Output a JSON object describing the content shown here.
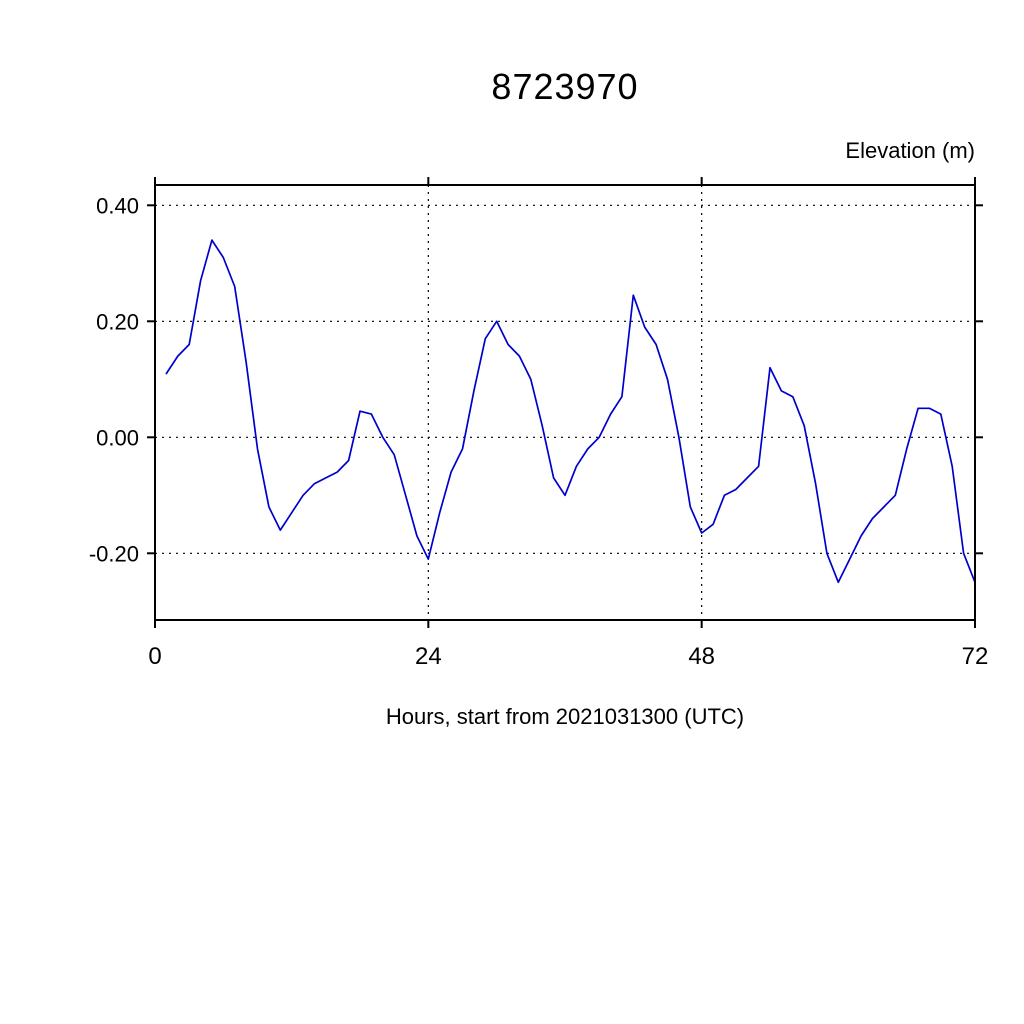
{
  "page": {
    "background": "#ffffff"
  },
  "chart_data": {
    "type": "line",
    "title": "8723970",
    "ylabel": "Elevation (m)",
    "xlabel": "Hours, start from 2021031300 (UTC)",
    "xlim": [
      0,
      72
    ],
    "ylim": [
      -0.315,
      0.435
    ],
    "xticks": {
      "values": [
        0,
        24,
        48,
        72
      ],
      "labels": [
        "0",
        "24",
        "48",
        "72"
      ]
    },
    "yticks": {
      "values": [
        0.4,
        0.2,
        0.0,
        -0.2
      ],
      "labels": [
        "0.40",
        "0.20",
        "0.00",
        "-0.20"
      ]
    },
    "xgrid": [
      24,
      48
    ],
    "ygrid": [
      0.4,
      0.2,
      0.0,
      -0.2
    ],
    "grid_style": "dotted",
    "frame_color": "#000000",
    "x": [
      1,
      2,
      3,
      4,
      5,
      6,
      7,
      8,
      9,
      10,
      11,
      12,
      13,
      14,
      15,
      16,
      17,
      18,
      19,
      20,
      21,
      22,
      23,
      24,
      25,
      26,
      27,
      28,
      29,
      30,
      31,
      32,
      33,
      34,
      35,
      36,
      37,
      38,
      39,
      40,
      41,
      42,
      43,
      44,
      45,
      46,
      47,
      48,
      49,
      50,
      51,
      52,
      53,
      54,
      55,
      56,
      57,
      58,
      59,
      60,
      61,
      62,
      63,
      64,
      65,
      66,
      67,
      68,
      69,
      70,
      71,
      72
    ],
    "series": [
      {
        "name": "elevation",
        "color": "#0000cc",
        "values": [
          0.11,
          0.14,
          0.16,
          0.27,
          0.34,
          0.31,
          0.26,
          0.13,
          -0.02,
          -0.12,
          -0.16,
          -0.13,
          -0.1,
          -0.08,
          -0.07,
          -0.06,
          -0.04,
          0.045,
          0.04,
          0.0,
          -0.03,
          -0.1,
          -0.17,
          -0.21,
          -0.13,
          -0.06,
          -0.02,
          0.08,
          0.17,
          0.2,
          0.16,
          0.14,
          0.1,
          0.02,
          -0.07,
          -0.1,
          -0.05,
          -0.02,
          0.0,
          0.04,
          0.07,
          0.245,
          0.19,
          0.16,
          0.1,
          0.0,
          -0.12,
          -0.165,
          -0.15,
          -0.1,
          -0.09,
          -0.07,
          -0.05,
          0.12,
          0.08,
          0.07,
          0.02,
          -0.08,
          -0.2,
          -0.25,
          -0.21,
          -0.17,
          -0.14,
          -0.12,
          -0.1,
          -0.02,
          0.05,
          0.05,
          0.04,
          -0.05,
          -0.2,
          -0.25
        ]
      }
    ]
  }
}
